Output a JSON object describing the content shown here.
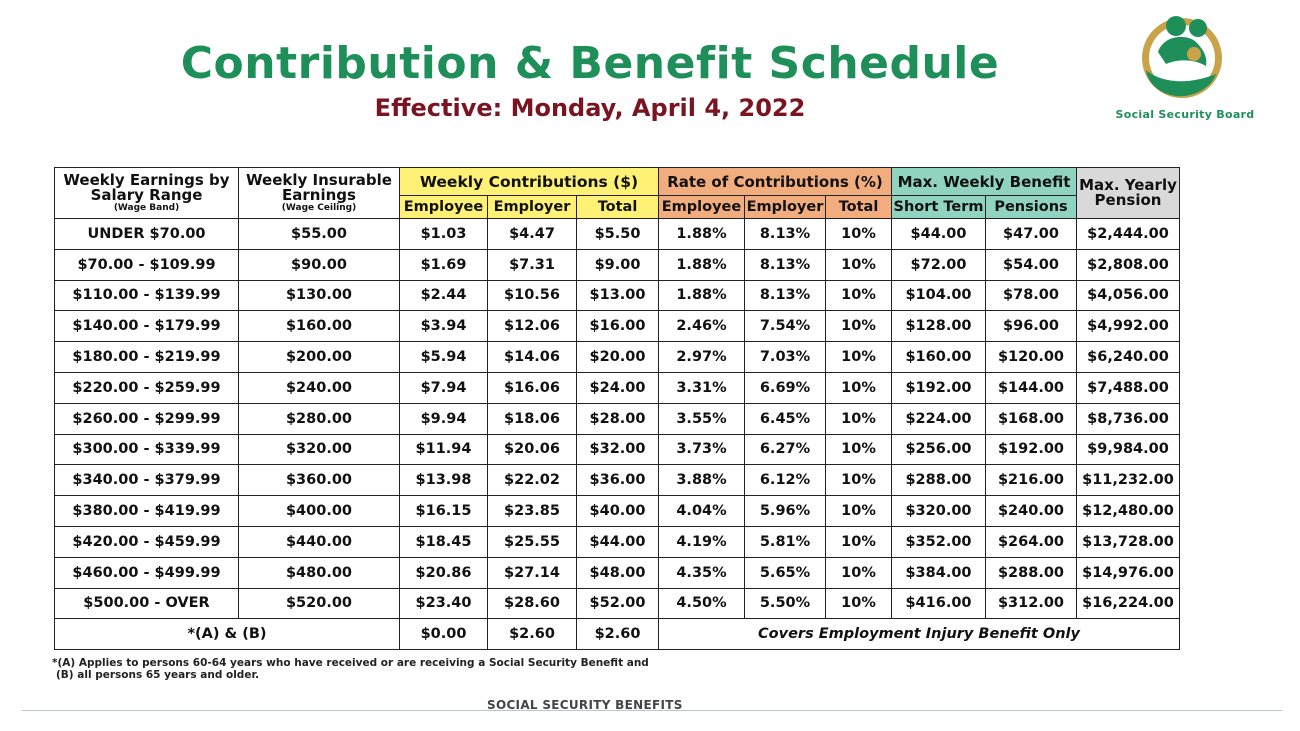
{
  "title": "Contribution & Benefit Schedule",
  "subtitle": "Effective: Monday, April 4, 2022",
  "logo": {
    "text": "Social Security Board",
    "icon": "family-hands-logo-icon",
    "colors": {
      "green": "#1f8f5a",
      "gold": "#c9a24a"
    }
  },
  "colors": {
    "title": "#1f8f5a",
    "subtitle": "#7a1420",
    "contributions": "#fff176",
    "rates": "#f2ad7f",
    "benefits": "#8fd3c0",
    "pension": "#d9d9d9"
  },
  "table": {
    "headers": {
      "earnings_range": "Weekly Earnings by Salary Range",
      "earnings_range_sub": "(Wage Band)",
      "insurable": "Weekly Insurable Earnings",
      "insurable_sub": "(Wage Ceiling)",
      "contributions": "Weekly Contributions ($)",
      "rates": "Rate of Contributions (%)",
      "benefit": "Max. Weekly Benefit",
      "yearly_pension": "Max. Yearly Pension",
      "sub_employee": "Employee",
      "sub_employer": "Employer",
      "sub_total": "Total",
      "sub_short_term": "Short Term",
      "sub_pensions": "Pensions"
    },
    "rows": [
      [
        "UNDER $70.00",
        "$55.00",
        "$1.03",
        "$4.47",
        "$5.50",
        "1.88%",
        "8.13%",
        "10%",
        "$44.00",
        "$47.00",
        "$2,444.00"
      ],
      [
        "$70.00 - $109.99",
        "$90.00",
        "$1.69",
        "$7.31",
        "$9.00",
        "1.88%",
        "8.13%",
        "10%",
        "$72.00",
        "$54.00",
        "$2,808.00"
      ],
      [
        "$110.00 - $139.99",
        "$130.00",
        "$2.44",
        "$10.56",
        "$13.00",
        "1.88%",
        "8.13%",
        "10%",
        "$104.00",
        "$78.00",
        "$4,056.00"
      ],
      [
        "$140.00 - $179.99",
        "$160.00",
        "$3.94",
        "$12.06",
        "$16.00",
        "2.46%",
        "7.54%",
        "10%",
        "$128.00",
        "$96.00",
        "$4,992.00"
      ],
      [
        "$180.00 - $219.99",
        "$200.00",
        "$5.94",
        "$14.06",
        "$20.00",
        "2.97%",
        "7.03%",
        "10%",
        "$160.00",
        "$120.00",
        "$6,240.00"
      ],
      [
        "$220.00 - $259.99",
        "$240.00",
        "$7.94",
        "$16.06",
        "$24.00",
        "3.31%",
        "6.69%",
        "10%",
        "$192.00",
        "$144.00",
        "$7,488.00"
      ],
      [
        "$260.00 - $299.99",
        "$280.00",
        "$9.94",
        "$18.06",
        "$28.00",
        "3.55%",
        "6.45%",
        "10%",
        "$224.00",
        "$168.00",
        "$8,736.00"
      ],
      [
        "$300.00 - $339.99",
        "$320.00",
        "$11.94",
        "$20.06",
        "$32.00",
        "3.73%",
        "6.27%",
        "10%",
        "$256.00",
        "$192.00",
        "$9,984.00"
      ],
      [
        "$340.00 - $379.99",
        "$360.00",
        "$13.98",
        "$22.02",
        "$36.00",
        "3.88%",
        "6.12%",
        "10%",
        "$288.00",
        "$216.00",
        "$11,232.00"
      ],
      [
        "$380.00 - $419.99",
        "$400.00",
        "$16.15",
        "$23.85",
        "$40.00",
        "4.04%",
        "5.96%",
        "10%",
        "$320.00",
        "$240.00",
        "$12,480.00"
      ],
      [
        "$420.00 - $459.99",
        "$440.00",
        "$18.45",
        "$25.55",
        "$44.00",
        "4.19%",
        "5.81%",
        "10%",
        "$352.00",
        "$264.00",
        "$13,728.00"
      ],
      [
        "$460.00 - $499.99",
        "$480.00",
        "$20.86",
        "$27.14",
        "$48.00",
        "4.35%",
        "5.65%",
        "10%",
        "$384.00",
        "$288.00",
        "$14,976.00"
      ],
      [
        "$500.00 - OVER",
        "$520.00",
        "$23.40",
        "$28.60",
        "$52.00",
        "4.50%",
        "5.50%",
        "10%",
        "$416.00",
        "$312.00",
        "$16,224.00"
      ]
    ],
    "special_row": {
      "label": "*(A) & (B)",
      "employee": "$0.00",
      "employer": "$2.60",
      "total": "$2.60",
      "note": "Covers Employment Injury Benefit Only"
    }
  },
  "footnote_line1": "*(A) Applies to persons 60-64 years who have received or are receiving a Social Security Benefit and",
  "footnote_line2": "(B) all persons 65 years and older.",
  "footer": "SOCIAL SECURITY BENEFITS"
}
